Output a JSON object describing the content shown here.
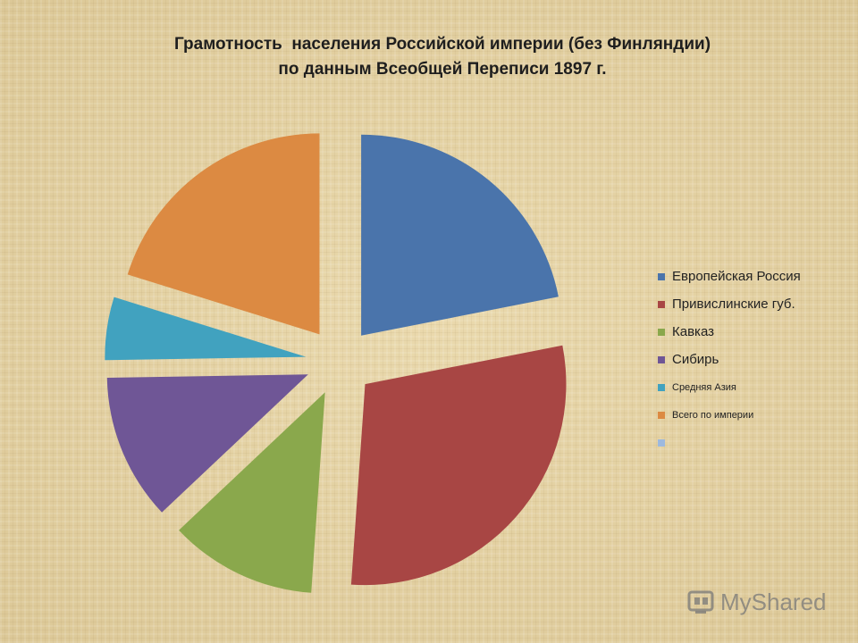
{
  "chart_data": {
    "type": "pie",
    "title": "Грамотность  населения Российской империи (без Финляндии)",
    "subtitle": "по данным Всеобщей Переписи 1897 г.",
    "categories": [
      "Европейская Россия",
      "Привислинские губ.",
      "Кавказ",
      "Сибирь",
      "Средняя Азия",
      "Всего по империи",
      ""
    ],
    "values": [
      22.9,
      30.5,
      12.4,
      12.3,
      5.3,
      21.1,
      0
    ],
    "colors": [
      "#4a74ab",
      "#a84644",
      "#8aa84c",
      "#6f5696",
      "#41a2bf",
      "#dc8a42",
      "#9db9de"
    ],
    "legend_position": "right",
    "exploded": true
  },
  "watermark": {
    "text": "MyShared"
  }
}
